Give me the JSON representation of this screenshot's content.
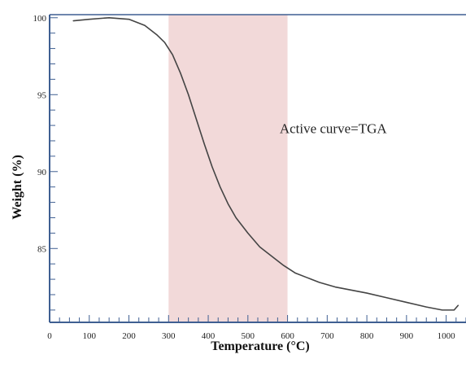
{
  "chart_data": {
    "type": "line",
    "xlabel": "Temperature (°C)",
    "ylabel": "Weight (%)",
    "xlim": [
      0,
      1050
    ],
    "ylim": [
      80.2,
      100.2
    ],
    "x_ticks": [
      {
        "value": 0,
        "label": "0"
      },
      {
        "value": 100,
        "label": "100"
      },
      {
        "value": 200,
        "label": "200"
      },
      {
        "value": 300,
        "label": "300"
      },
      {
        "value": 400,
        "label": "400"
      },
      {
        "value": 500,
        "label": "500"
      },
      {
        "value": 600,
        "label": "600"
      },
      {
        "value": 700,
        "label": "700"
      },
      {
        "value": 800,
        "label": "800"
      },
      {
        "value": 900,
        "label": "900"
      },
      {
        "value": 1000,
        "label": "1000"
      }
    ],
    "y_ticks": [
      {
        "value": 100,
        "label": "100"
      },
      {
        "value": 95,
        "label": "95"
      },
      {
        "value": 90,
        "label": "90"
      },
      {
        "value": 85,
        "label": "85"
      }
    ],
    "highlight_region": {
      "x_start": 300,
      "x_end": 600,
      "color": "#f2d9d9"
    },
    "annotation": {
      "text": "Active curve=TGA",
      "x": 580,
      "y": 92.5
    },
    "series": [
      {
        "color": "#444444",
        "x": [
          60,
          100,
          150,
          200,
          240,
          270,
          290,
          310,
          330,
          350,
          370,
          390,
          410,
          430,
          450,
          470,
          500,
          530,
          560,
          590,
          620,
          650,
          680,
          720,
          760,
          800,
          850,
          900,
          950,
          990,
          1020,
          1030
        ],
        "y": [
          99.8,
          99.9,
          100.0,
          99.9,
          99.5,
          98.9,
          98.4,
          97.6,
          96.4,
          95.0,
          93.4,
          91.8,
          90.3,
          89.0,
          87.9,
          87.0,
          86.0,
          85.1,
          84.5,
          83.9,
          83.4,
          83.1,
          82.8,
          82.5,
          82.3,
          82.1,
          81.8,
          81.5,
          81.2,
          81.0,
          81.0,
          81.3
        ]
      }
    ]
  }
}
